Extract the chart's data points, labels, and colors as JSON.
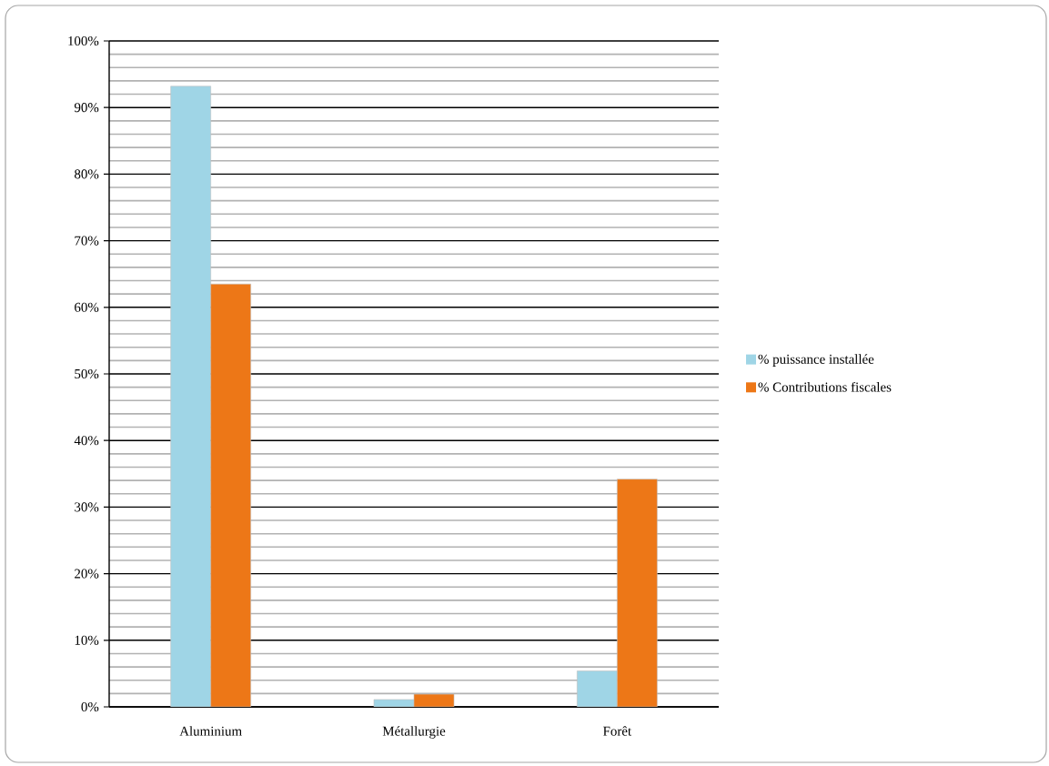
{
  "chart_data": {
    "type": "bar",
    "categories": [
      "Aluminium",
      "Métallurgie",
      "Forêt"
    ],
    "series": [
      {
        "name": "% puissance installée",
        "color": "#9fd5e6",
        "values": [
          93.2,
          1.1,
          5.4
        ]
      },
      {
        "name": "% Contributions fiscales",
        "color": "#ed7717",
        "values": [
          63.5,
          1.9,
          34.2
        ]
      }
    ],
    "ylim": [
      0,
      100
    ],
    "yticks": [
      {
        "value": 0,
        "label": "0%"
      },
      {
        "value": 10,
        "label": "10%"
      },
      {
        "value": 20,
        "label": "20%"
      },
      {
        "value": 30,
        "label": "30%"
      },
      {
        "value": 40,
        "label": "40%"
      },
      {
        "value": 50,
        "label": "50%"
      },
      {
        "value": 60,
        "label": "60%"
      },
      {
        "value": 70,
        "label": "70%"
      },
      {
        "value": 80,
        "label": "80%"
      },
      {
        "value": 90,
        "label": "90%"
      },
      {
        "value": 100,
        "label": "100%"
      }
    ],
    "grid": "y",
    "legend": "right"
  }
}
